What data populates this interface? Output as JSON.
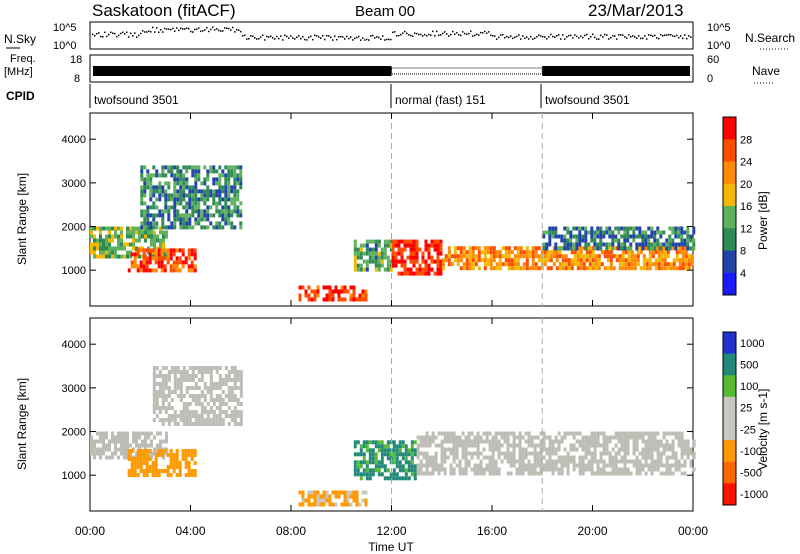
{
  "header": {
    "station": "Saskatoon (fitACF)",
    "beam": "Beam 00",
    "date": "23/Mar/2013"
  },
  "summary": {
    "nsky_label": "N.Sky",
    "nsky_ticks": [
      "10^5",
      "10^0"
    ],
    "nsearch_label": "N.Search",
    "nsearch_ticks": [
      "10^5",
      "10^0"
    ],
    "freq_label_1": "Freq.",
    "freq_label_2": "[MHz]",
    "freq_ticks": [
      "18",
      "8"
    ],
    "nave_label": "Nave",
    "nave_ticks": [
      "60",
      "0"
    ],
    "cpid_label": "CPID",
    "cpid_segments": [
      {
        "start_hour": 0,
        "end_hour": 12,
        "label": "twofsound 3501"
      },
      {
        "start_hour": 12,
        "end_hour": 18,
        "label": "normal (fast) 151"
      },
      {
        "start_hour": 18,
        "end_hour": 24,
        "label": "twofsound 3501"
      }
    ]
  },
  "colors": {
    "power_scale": [
      "#1a1aff",
      "#2244aa",
      "#2f8a55",
      "#5fb15f",
      "#f5b800",
      "#ff8a00",
      "#ff4d00",
      "#ff0000"
    ],
    "velocity_scale": [
      "#2233cc",
      "#228877",
      "#55bb33",
      "#c8c8c0",
      "#c8c8c0",
      "#ff9900",
      "#ff6600",
      "#ff1100"
    ],
    "ground_scatter": "#bdbdb5"
  },
  "chart_data": [
    {
      "type": "heatmap",
      "title": "",
      "xlabel": "Time UT",
      "ylabel": "Slant Range [km]",
      "xlim": [
        0,
        24
      ],
      "ylim": [
        180,
        4600
      ],
      "x_ticks": [
        "00:00",
        "04:00",
        "08:00",
        "12:00",
        "16:00",
        "20:00",
        "00:00"
      ],
      "y_ticks": [
        1000,
        2000,
        3000,
        4000
      ],
      "colorbar": {
        "label": "Power [dB]",
        "range": [
          0,
          32
        ],
        "ticks": [
          4,
          8,
          12,
          16,
          20,
          24,
          28
        ]
      },
      "features": [
        {
          "start_hour": 0.0,
          "end_hour": 3.0,
          "range_min_km": 1300,
          "range_max_km": 2000,
          "power_db": 14
        },
        {
          "start_hour": 1.5,
          "end_hour": 4.2,
          "range_min_km": 1000,
          "range_max_km": 1500,
          "power_db": 26
        },
        {
          "start_hour": 2.0,
          "end_hour": 6.0,
          "range_min_km": 2000,
          "range_max_km": 3400,
          "power_db": 10
        },
        {
          "start_hour": 8.3,
          "end_hour": 11.0,
          "range_min_km": 300,
          "range_max_km": 650,
          "power_db": 28
        },
        {
          "start_hour": 10.5,
          "end_hour": 12.0,
          "range_min_km": 1000,
          "range_max_km": 1700,
          "power_db": 12
        },
        {
          "start_hour": 12.0,
          "end_hour": 14.0,
          "range_min_km": 900,
          "range_max_km": 1700,
          "power_db": 29
        },
        {
          "start_hour": 14.0,
          "end_hour": 24.0,
          "range_min_km": 1050,
          "range_max_km": 1550,
          "power_db": 22
        },
        {
          "start_hour": 18.0,
          "end_hour": 24.0,
          "range_min_km": 1500,
          "range_max_km": 2000,
          "power_db": 9
        }
      ]
    },
    {
      "type": "heatmap",
      "title": "",
      "xlabel": "Time UT",
      "ylabel": "Slant Range [km]",
      "xlim": [
        0,
        24
      ],
      "ylim": [
        180,
        4600
      ],
      "x_ticks": [
        "00:00",
        "04:00",
        "08:00",
        "12:00",
        "16:00",
        "20:00",
        "00:00"
      ],
      "y_ticks": [
        1000,
        2000,
        3000,
        4000
      ],
      "colorbar": {
        "label": "Velocity [m s-1]",
        "ticks": [
          "1000",
          "500",
          "100",
          "25",
          "-25",
          "-100",
          "-500",
          "-1000"
        ]
      },
      "features": [
        {
          "start_hour": 0.0,
          "end_hour": 3.0,
          "range_min_km": 1400,
          "range_max_km": 2000,
          "velocity": 0,
          "ground_scatter": true
        },
        {
          "start_hour": 1.5,
          "end_hour": 4.2,
          "range_min_km": 1000,
          "range_max_km": 1600,
          "velocity": -200
        },
        {
          "start_hour": 2.5,
          "end_hour": 6.0,
          "range_min_km": 2200,
          "range_max_km": 3500,
          "velocity": 0,
          "ground_scatter": true
        },
        {
          "start_hour": 8.3,
          "end_hour": 11.0,
          "range_min_km": 300,
          "range_max_km": 650,
          "velocity": -150
        },
        {
          "start_hour": 10.5,
          "end_hour": 13.0,
          "range_min_km": 900,
          "range_max_km": 1800,
          "velocity": 150
        },
        {
          "start_hour": 13.0,
          "end_hour": 24.0,
          "range_min_km": 1050,
          "range_max_km": 2000,
          "velocity": 0,
          "ground_scatter": true
        }
      ]
    }
  ]
}
